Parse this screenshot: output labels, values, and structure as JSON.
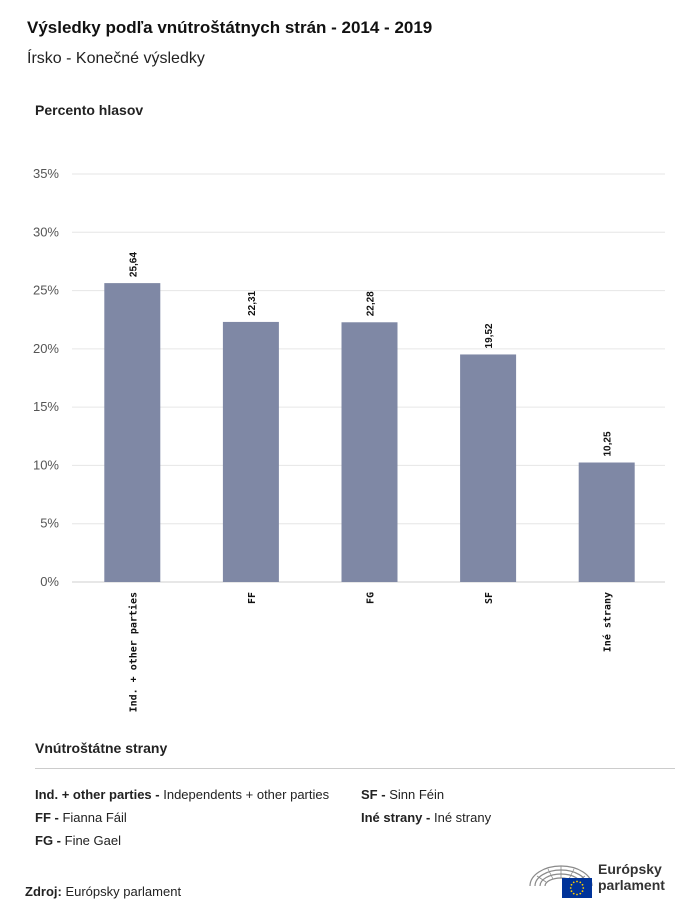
{
  "header": {
    "title": "Výsledky podľa vnútroštátnych strán - 2014 - 2019",
    "subtitle": "Írsko - Konečné výsledky"
  },
  "chart_data": {
    "type": "bar",
    "title": "Výsledky podľa vnútroštátnych strán - 2014 - 2019",
    "subtitle": "Írsko - Konečné výsledky",
    "ylabel": "Percento hlasov",
    "xlabel": "",
    "categories": [
      "Ind. + other parties",
      "FF",
      "FG",
      "SF",
      "Iné strany"
    ],
    "values": [
      25.64,
      22.31,
      22.28,
      19.52,
      10.25
    ],
    "value_labels": [
      "25,64",
      "22,31",
      "22,28",
      "19,52",
      "10,25"
    ],
    "ylim": [
      0,
      35
    ],
    "yticks": [
      0,
      5,
      10,
      15,
      20,
      25,
      30,
      35
    ],
    "ytick_labels": [
      "0%",
      "5%",
      "10%",
      "15%",
      "20%",
      "25%",
      "30%",
      "35%"
    ],
    "grid": true,
    "bar_color": "#7f88a5"
  },
  "legend": {
    "title": "Vnútroštátne strany",
    "items": [
      {
        "abbr": "Ind. + other parties -",
        "name": "Independents + other parties"
      },
      {
        "abbr": "SF -",
        "name": "Sinn Féin"
      },
      {
        "abbr": "FF -",
        "name": "Fianna Fáil"
      },
      {
        "abbr": "Iné strany -",
        "name": "Iné strany"
      },
      {
        "abbr": "FG -",
        "name": "Fine Gael"
      }
    ]
  },
  "source": {
    "label": "Zdroj:",
    "value": "Európsky parlament"
  },
  "logo": {
    "line1": "Európsky",
    "line2": "parlament"
  },
  "colors": {
    "bar": "#7f88a5",
    "grid": "#e6e6e6",
    "eu_blue": "#003399",
    "eu_star": "#ffcc00"
  }
}
